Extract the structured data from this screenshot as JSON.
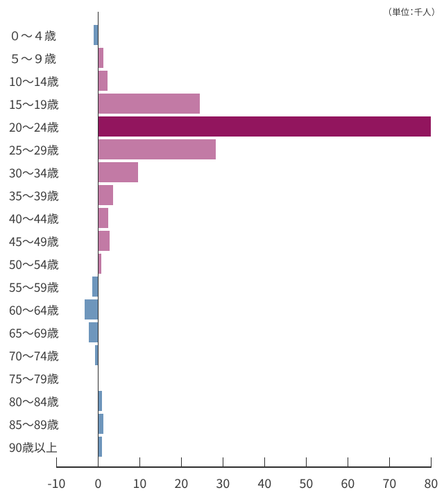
{
  "chart_data": {
    "type": "bar",
    "orientation": "horizontal",
    "title": "",
    "unit_label": "（単位：千人）",
    "xlabel": "",
    "ylabel": "",
    "xlim": [
      -10,
      80
    ],
    "x_ticks": [
      -10,
      0,
      10,
      20,
      30,
      40,
      50,
      60,
      70,
      80
    ],
    "grid": false,
    "legend": false,
    "categories": [
      "０〜４歳",
      "５〜９歳",
      "10〜14歳",
      "15〜19歳",
      "20〜24歳",
      "25〜29歳",
      "30〜34歳",
      "35〜39歳",
      "40〜44歳",
      "45〜49歳",
      "50〜54歳",
      "55〜59歳",
      "60〜64歳",
      "65〜69歳",
      "70〜74歳",
      "75〜79歳",
      "80〜84歳",
      "85〜89歳",
      "90歳以上"
    ],
    "values": [
      -1.0,
      1.2,
      2.2,
      24.4,
      80.0,
      28.2,
      9.6,
      3.6,
      2.4,
      2.7,
      0.7,
      -1.4,
      -3.2,
      -2.3,
      -0.8,
      0.0,
      1.0,
      1.2,
      0.9
    ],
    "bar_colors": [
      "blue",
      "pink",
      "pink",
      "pink",
      "dark_magenta",
      "pink",
      "pink",
      "pink",
      "pink",
      "pink",
      "pink",
      "blue",
      "blue",
      "blue",
      "blue",
      "blue",
      "blue",
      "blue",
      "blue"
    ]
  },
  "palette": {
    "pink": "#c27aa5",
    "dark_magenta": "#92155e",
    "blue": "#6e96bc",
    "axis": "#2f2f2f",
    "text": "#3a3a3a",
    "background": "#ffffff"
  }
}
